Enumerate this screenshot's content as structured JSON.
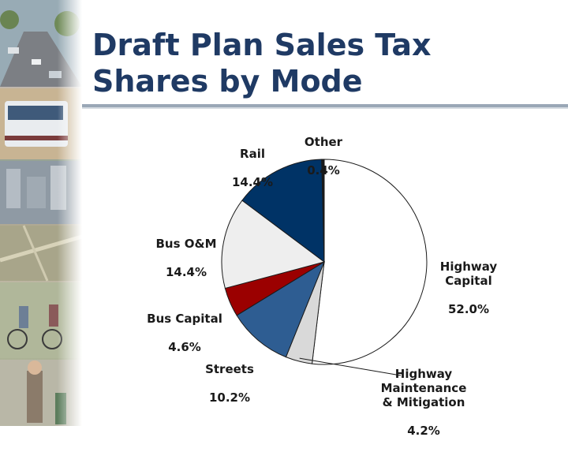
{
  "title": {
    "line1": "Draft Plan Sales Tax",
    "line2": "Shares by Mode"
  },
  "chart_data": {
    "type": "pie",
    "title": "Draft Plan Sales Tax Shares by Mode",
    "start_angle": "12 o'clock",
    "direction": "clockwise",
    "slices": [
      {
        "label": "Highway Capital",
        "value": 52.0,
        "display": "52.0%",
        "color": "#ffffff"
      },
      {
        "label": "Highway Maintenance & Mitigation",
        "value": 4.2,
        "display": "4.2%",
        "color": "#d9d9d9"
      },
      {
        "label": "Streets",
        "value": 10.2,
        "display": "10.2%",
        "color": "#2e5d92"
      },
      {
        "label": "Bus Capital",
        "value": 4.6,
        "display": "4.6%",
        "color": "#9b0000"
      },
      {
        "label": "Bus O&M",
        "value": 14.4,
        "display": "14.4%",
        "color": "#eeeeee"
      },
      {
        "label": "Rail",
        "value": 14.4,
        "display": "14.4%",
        "color": "#003366"
      },
      {
        "label": "Other",
        "value": 0.4,
        "display": "0.4%",
        "color": "#1a1a1a"
      }
    ],
    "label_text": {
      "highway_capital": "Highway\nCapital",
      "highway_maint": "Highway\nMaintenance\n& Mitigation",
      "streets": "Streets",
      "bus_capital": "Bus Capital",
      "bus_om": "Bus O&M",
      "rail": "Rail",
      "other": "Other"
    }
  }
}
